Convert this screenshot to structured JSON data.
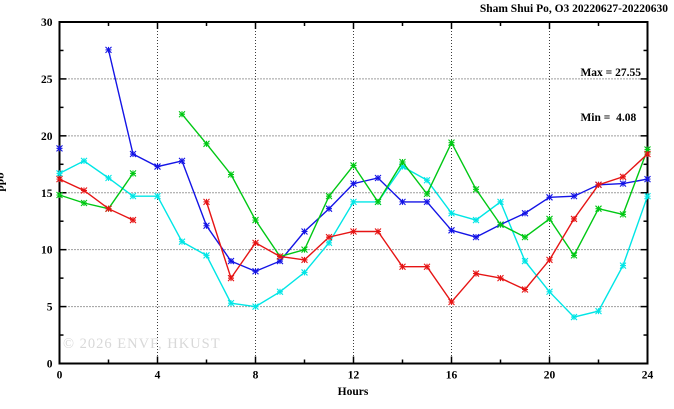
{
  "title": "Sham Shui Po, O3 20220627-20220630",
  "annotation": {
    "max_label": "Max = 27.55",
    "min_label": "Min =  4.08"
  },
  "watermark": "© 2026 ENVF, HKUST",
  "chart_data": {
    "type": "line",
    "title": "Sham Shui Po, O3 20220627-20220630",
    "xlabel": "Hours",
    "ylabel": "ppb",
    "xlim": [
      0,
      24
    ],
    "ylim": [
      0,
      30
    ],
    "x_major_ticks": [
      0,
      4,
      8,
      12,
      16,
      20,
      24
    ],
    "x_minor_ticks": [
      2,
      6,
      10,
      14,
      18,
      22
    ],
    "y_major_ticks": [
      0,
      5,
      10,
      15,
      20,
      25,
      30
    ],
    "y_minor_ticks": [
      2.5,
      7.5,
      12.5,
      17.5,
      22.5,
      27.5
    ],
    "grid": true,
    "legend_position": "none",
    "max": 27.55,
    "min": 4.08,
    "x": [
      0,
      1,
      2,
      3,
      4,
      5,
      6,
      7,
      8,
      9,
      10,
      11,
      12,
      13,
      14,
      15,
      16,
      17,
      18,
      19,
      20,
      21,
      22,
      23,
      24
    ],
    "series": [
      {
        "name": "blue-line",
        "color": "#1414e6",
        "values": [
          18.9,
          null,
          27.55,
          18.4,
          17.3,
          17.8,
          12.1,
          9.0,
          8.1,
          9.0,
          11.6,
          13.6,
          15.8,
          16.3,
          14.2,
          14.2,
          11.7,
          11.1,
          12.2,
          13.2,
          14.6,
          14.7,
          15.7,
          15.8,
          16.2
        ]
      },
      {
        "name": "red-line",
        "color": "#e61414",
        "values": [
          16.2,
          15.2,
          13.6,
          12.6,
          null,
          null,
          14.2,
          7.5,
          10.6,
          9.4,
          9.1,
          11.1,
          11.6,
          11.6,
          8.5,
          8.5,
          5.4,
          7.9,
          7.5,
          6.5,
          9.1,
          12.7,
          15.7,
          16.4,
          18.4
        ]
      },
      {
        "name": "green-line",
        "color": "#00c814",
        "values": [
          14.8,
          14.1,
          13.6,
          16.7,
          null,
          21.9,
          19.3,
          16.6,
          12.6,
          9.4,
          10.0,
          14.7,
          17.4,
          14.2,
          17.7,
          14.9,
          19.4,
          15.3,
          12.2,
          11.1,
          12.7,
          9.5,
          13.6,
          13.1,
          18.8
        ]
      },
      {
        "name": "cyan-line",
        "color": "#00e6e6",
        "values": [
          16.7,
          17.8,
          16.3,
          14.7,
          14.7,
          10.7,
          9.5,
          5.3,
          5.0,
          6.3,
          8.0,
          10.6,
          14.2,
          14.2,
          17.3,
          16.1,
          13.2,
          12.6,
          14.2,
          9.0,
          6.3,
          4.08,
          4.6,
          8.6,
          14.7
        ]
      }
    ]
  }
}
